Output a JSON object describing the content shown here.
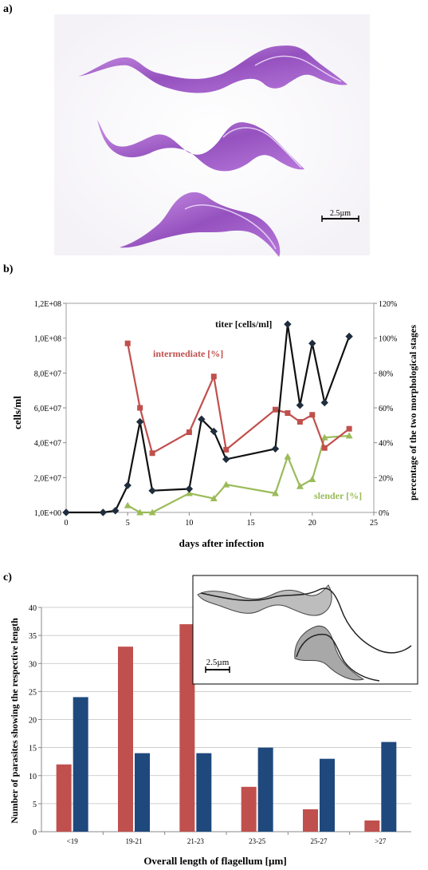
{
  "panels": {
    "a": "a)",
    "b": "b)",
    "c": "c)"
  },
  "micrograph": {
    "scale_bar_label": "2.5µm"
  },
  "chart_data": [
    {
      "type": "line",
      "xlabel": "days after infection",
      "ylabel": "cells/ml",
      "y2label": "percentage of the two morphological stages",
      "xlim": [
        0,
        25
      ],
      "xticks": [
        "0",
        "5",
        "10",
        "15",
        "20",
        "25"
      ],
      "ylim": [
        0,
        120000000
      ],
      "yticks": [
        "1,0E+00",
        "2,0E+07",
        "4,0E+07",
        "6,0E+07",
        "8,0E+07",
        "1,0E+08",
        "1,2E+08"
      ],
      "y2lim": [
        0,
        120
      ],
      "y2ticks": [
        "0%",
        "20%",
        "40%",
        "60%",
        "80%",
        "100%",
        "120%"
      ],
      "series": [
        {
          "name": "titer [cells/ml]",
          "axis": "left",
          "color": "#111111",
          "marker": "diamond",
          "x": [
            0,
            3,
            4,
            5,
            6,
            7,
            10,
            11,
            12,
            13,
            17,
            18,
            19,
            20,
            21,
            23
          ],
          "y": [
            0,
            0,
            1000000,
            15500000,
            52000000,
            12500000,
            13500000,
            53500000,
            46500000,
            30500000,
            36500000,
            108000000,
            61500000,
            97000000,
            63000000,
            101000000
          ]
        },
        {
          "name": "intermediate [%]",
          "axis": "right",
          "color": "#c0504d",
          "marker": "square",
          "x": [
            5,
            6,
            7,
            10,
            12,
            13,
            17,
            18,
            19,
            20,
            21,
            23
          ],
          "y": [
            97,
            60,
            34,
            46,
            78,
            36,
            59,
            57,
            52,
            56,
            37,
            48
          ]
        },
        {
          "name": "slender [%]",
          "axis": "right",
          "color": "#9bbb59",
          "marker": "triangle",
          "x": [
            5,
            6,
            7,
            10,
            12,
            13,
            17,
            18,
            19,
            20,
            21,
            23
          ],
          "y": [
            4,
            0,
            0,
            11,
            8,
            16,
            11,
            32,
            15,
            19,
            43,
            44
          ]
        }
      ]
    },
    {
      "type": "bar",
      "xlabel": "Overall length of flagellum [µm]",
      "ylabel": "Number of parasites showing the respective length",
      "categories": [
        "<19",
        "19-21",
        "21-23",
        "23-25",
        "25-27",
        ">27"
      ],
      "ylim": [
        0,
        40
      ],
      "yticks": [
        "0",
        "5",
        "10",
        "15",
        "20",
        "25",
        "30",
        "35",
        "40"
      ],
      "grid": true,
      "series": [
        {
          "color": "#c0504d",
          "values": [
            12,
            33,
            37,
            8,
            4,
            2
          ]
        },
        {
          "color": "#1f497d",
          "values": [
            24,
            14,
            14,
            15,
            13,
            16
          ]
        }
      ],
      "inset_scale_label": "2.5µm"
    }
  ]
}
